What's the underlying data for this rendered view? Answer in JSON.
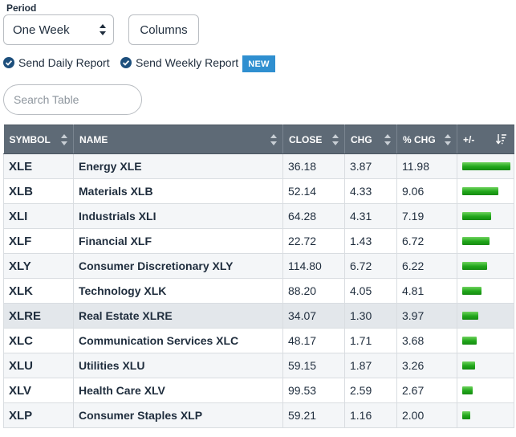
{
  "period": {
    "label": "Period",
    "selected": "One Week"
  },
  "toolbar": {
    "columns_label": "Columns"
  },
  "reports": {
    "daily_label": "Send Daily Report",
    "weekly_label": "Send Weekly Report",
    "new_badge": "NEW"
  },
  "search": {
    "placeholder": "Search Table"
  },
  "colors": {
    "header_bg": "#5e6a76",
    "link": "#1d4f7c",
    "badge": "#2f8fd0",
    "bar": "#20a61a"
  },
  "table": {
    "headers": [
      "SYMBOL",
      "NAME",
      "CLOSE",
      "CHG",
      "% CHG",
      "+/-"
    ],
    "rows": [
      {
        "symbol": "XLE",
        "name": "Energy XLE",
        "close": "36.18",
        "chg": "3.87",
        "pct": "11.98",
        "bar_pct": 11.98
      },
      {
        "symbol": "XLB",
        "name": "Materials XLB",
        "close": "52.14",
        "chg": "4.33",
        "pct": "9.06",
        "bar_pct": 9.06
      },
      {
        "symbol": "XLI",
        "name": "Industrials XLI",
        "close": "64.28",
        "chg": "4.31",
        "pct": "7.19",
        "bar_pct": 7.19
      },
      {
        "symbol": "XLF",
        "name": "Financial XLF",
        "close": "22.72",
        "chg": "1.43",
        "pct": "6.72",
        "bar_pct": 6.72
      },
      {
        "symbol": "XLY",
        "name": "Consumer Discretionary XLY",
        "close": "114.80",
        "chg": "6.72",
        "pct": "6.22",
        "bar_pct": 6.22
      },
      {
        "symbol": "XLK",
        "name": "Technology XLK",
        "close": "88.20",
        "chg": "4.05",
        "pct": "4.81",
        "bar_pct": 4.81
      },
      {
        "symbol": "XLRE",
        "name": "Real Estate XLRE",
        "close": "34.07",
        "chg": "1.30",
        "pct": "3.97",
        "bar_pct": 3.97
      },
      {
        "symbol": "XLC",
        "name": "Communication Services XLC",
        "close": "48.17",
        "chg": "1.71",
        "pct": "3.68",
        "bar_pct": 3.68
      },
      {
        "symbol": "XLU",
        "name": "Utilities XLU",
        "close": "59.15",
        "chg": "1.87",
        "pct": "3.26",
        "bar_pct": 3.26
      },
      {
        "symbol": "XLV",
        "name": "Health Care XLV",
        "close": "99.53",
        "chg": "2.59",
        "pct": "2.67",
        "bar_pct": 2.67
      },
      {
        "symbol": "XLP",
        "name": "Consumer Staples XLP",
        "close": "59.21",
        "chg": "1.16",
        "pct": "2.00",
        "bar_pct": 2.0
      }
    ],
    "highlighted_row": 6
  }
}
